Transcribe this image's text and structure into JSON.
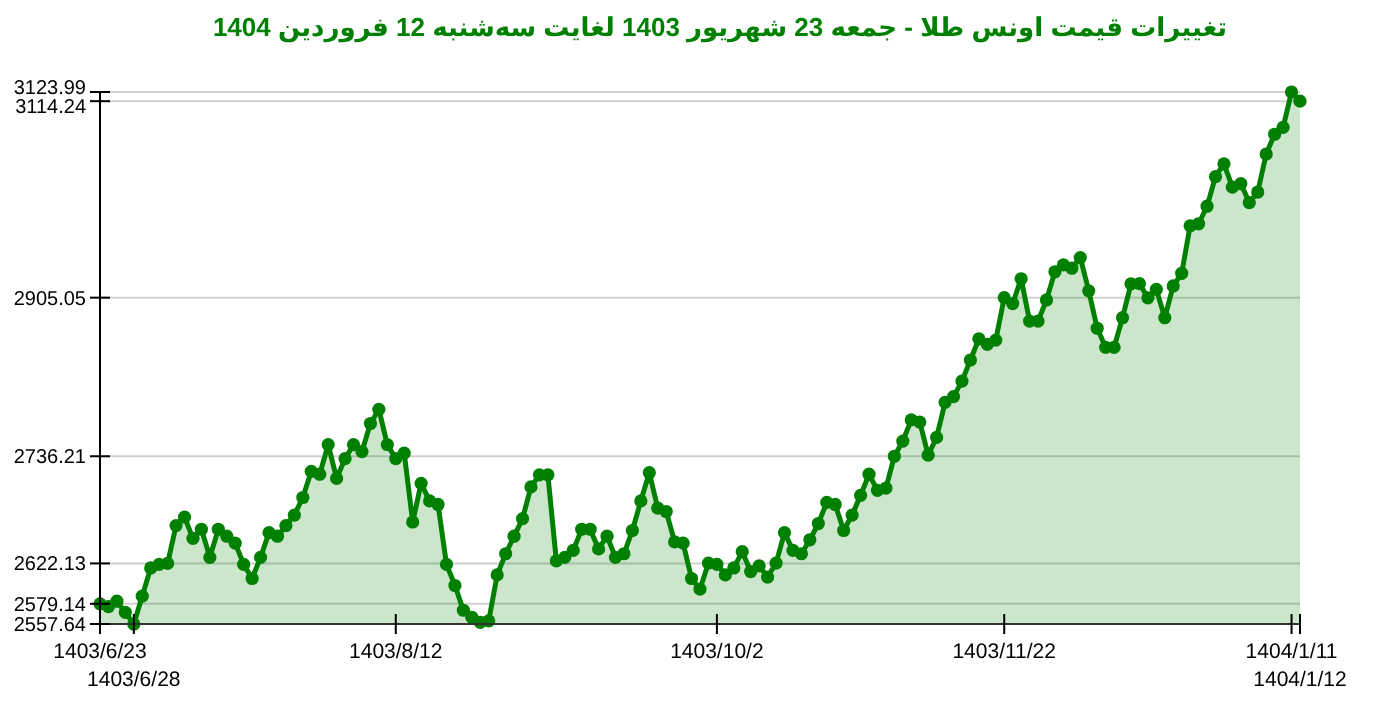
{
  "chart_data": {
    "type": "area",
    "title": "تغییرات قیمت اونس طلا - جمعه  23 شهریور 1403 لغایت  سه‌شنبه  12 فروردین 1404",
    "color": "#008000",
    "marker": "circle",
    "grid": "y",
    "categories": [
      "1403/6/23",
      null,
      null,
      null,
      "1403/6/28",
      null,
      null,
      null,
      null,
      null,
      null,
      null,
      null,
      null,
      null,
      null,
      null,
      null,
      null,
      null,
      null,
      null,
      null,
      null,
      null,
      null,
      null,
      null,
      null,
      null,
      null,
      null,
      null,
      null,
      null,
      "1403/8/12",
      null,
      null,
      null,
      null,
      null,
      null,
      null,
      null,
      null,
      null,
      null,
      null,
      null,
      null,
      null,
      null,
      null,
      null,
      null,
      null,
      null,
      null,
      null,
      null,
      null,
      null,
      null,
      null,
      null,
      null,
      null,
      null,
      null,
      null,
      null,
      null,
      null,
      "1403/10/2",
      null,
      null,
      null,
      null,
      null,
      null,
      null,
      null,
      null,
      null,
      null,
      null,
      null,
      null,
      null,
      null,
      null,
      null,
      null,
      null,
      null,
      null,
      null,
      null,
      null,
      null,
      null,
      null,
      null,
      null,
      null,
      null,
      null,
      "1403/11/22",
      null,
      null,
      null,
      null,
      null,
      null,
      null,
      null,
      null,
      null,
      null,
      null,
      null,
      null,
      null,
      null,
      null,
      null,
      null,
      null,
      null,
      null,
      null,
      null,
      null,
      null,
      null,
      null,
      null,
      null,
      null,
      null,
      null,
      "1404/1/11",
      "1404/1/12"
    ],
    "ylim": [
      2557.64,
      3123.99
    ],
    "yticks": [
      2557.64,
      2579.14,
      2622.13,
      2736.21,
      2905.05,
      3114.24,
      3123.99
    ],
    "values": [
      2579.14,
      2576.1,
      2581.9,
      2570.0,
      2557.64,
      2587.4,
      2617.3,
      2621.1,
      2622.13,
      2662.4,
      2671.4,
      2648.8,
      2658.5,
      2628.6,
      2658.5,
      2651.1,
      2643.7,
      2621.1,
      2606.1,
      2628.6,
      2654.9,
      2651.1,
      2662.4,
      2673.6,
      2692.3,
      2720.2,
      2717.1,
      2748.6,
      2712.6,
      2733.7,
      2748.6,
      2741.2,
      2771.1,
      2786.2,
      2748.6,
      2733.7,
      2739.6,
      2666.2,
      2707.4,
      2688.7,
      2684.9,
      2621.1,
      2598.6,
      2572.3,
      2564.8,
      2559.4,
      2561.0,
      2609.9,
      2632.4,
      2651.1,
      2669.8,
      2703.6,
      2716.4,
      2716.4,
      2624.8,
      2628.6,
      2636.0,
      2658.5,
      2658.5,
      2637.6,
      2651.1,
      2628.6,
      2632.4,
      2657.2,
      2688.7,
      2718.7,
      2681.1,
      2677.4,
      2645.0,
      2643.7,
      2606.1,
      2594.8,
      2622.5,
      2621.1,
      2609.9,
      2617.3,
      2634.6,
      2613.5,
      2619.6,
      2607.6,
      2622.5,
      2654.9,
      2636.0,
      2632.4,
      2647.3,
      2664.6,
      2687.1,
      2684.9,
      2657.2,
      2673.6,
      2694.6,
      2717.1,
      2699.9,
      2702.2,
      2736.21,
      2752.4,
      2774.9,
      2772.7,
      2737.4,
      2756.3,
      2793.6,
      2799.7,
      2816.2,
      2838.7,
      2861.2,
      2855.3,
      2859.9,
      2905.05,
      2898.8,
      2925.2,
      2880.1,
      2880.1,
      2902.6,
      2932.6,
      2940.0,
      2936.4,
      2947.7,
      2912.3,
      2872.5,
      2852.2,
      2852.2,
      2883.7,
      2919.8,
      2920.0,
      2904.9,
      2913.9,
      2883.7,
      2917.5,
      2931.0,
      2981.5,
      2983.7,
      3002.4,
      3033.9,
      3047.5,
      3022.7,
      3026.5,
      3006.2,
      3017.5,
      3058.0,
      3079.0,
      3086.4,
      3123.99,
      3114.24
    ]
  }
}
